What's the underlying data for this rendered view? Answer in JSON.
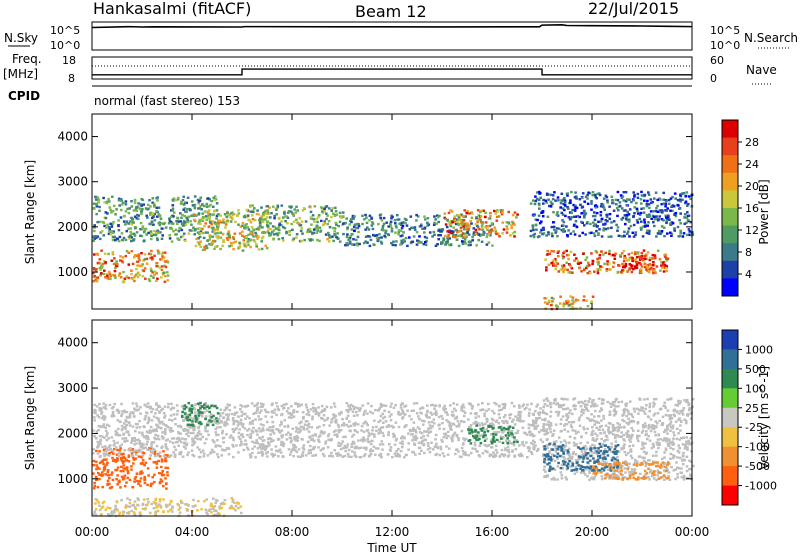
{
  "header": {
    "station": "Hankasalmi (fitACF)",
    "beam": "Beam 12",
    "date": "22/Jul/2015"
  },
  "panels": {
    "nsky_label": "N.Sky",
    "nsky_ticks": [
      "10^5",
      "10^0"
    ],
    "nsearch_label": "N.Search",
    "nsearch_ticks": [
      "10^5",
      "10^0"
    ],
    "freq_label": "Freq.",
    "freq_unit": "[MHz]",
    "freq_ticks": [
      "18",
      "8"
    ],
    "nave_label": "Nave",
    "nave_ticks": [
      "60",
      "0"
    ],
    "cpid_label": "CPID",
    "cpid_text": "normal (fast stereo) 153"
  },
  "colorbars": {
    "power": {
      "label": "Power [dB]",
      "ticks": [
        "28",
        "24",
        "20",
        "16",
        "12",
        "8",
        "4"
      ],
      "colors": [
        "#0000ff",
        "#1c3fa8",
        "#3a7a8a",
        "#4f9c62",
        "#7ab84a",
        "#c9c83a",
        "#f0a020",
        "#f07018",
        "#e8401c",
        "#dd0000"
      ]
    },
    "velocity": {
      "label": "Velocity [m s^-1]",
      "ticks": [
        "1000",
        "500",
        "100",
        "25",
        "-25",
        "-100",
        "-500",
        "-1000"
      ],
      "colors": [
        "#1b3fb0",
        "#2f6f98",
        "#2e8a50",
        "#66cc33",
        "#c8c8c0",
        "#f0c040",
        "#f09030",
        "#ff6010",
        "#ff0000"
      ]
    }
  },
  "colors": {
    "ground_scatter": "#bebebe"
  },
  "chart_data": [
    {
      "type": "line",
      "name": "sky-noise",
      "x_unit": "hours UT",
      "x": [
        0,
        1.5,
        2,
        2.5,
        6,
        6.1,
        10,
        14,
        17.9,
        18,
        18.8,
        19,
        20,
        22,
        23,
        24
      ],
      "y": [
        20000,
        30000,
        25000,
        28000,
        25000,
        30000,
        28000,
        26000,
        28000,
        60000,
        70000,
        50000,
        45000,
        40000,
        35000,
        30000
      ]
    },
    {
      "type": "line",
      "name": "frequency",
      "x_unit": "hours UT",
      "x": [
        0,
        6,
        6,
        18,
        18,
        24
      ],
      "y": [
        9.9,
        9.9,
        12.5,
        12.5,
        9.9,
        9.9
      ],
      "ylim": [
        8,
        18
      ]
    },
    {
      "type": "heatmap",
      "panel": "power",
      "xlabel": "Time UT",
      "ylabel": "Slant Range [km]",
      "x_ticks": [
        "00:00",
        "04:00",
        "08:00",
        "12:00",
        "16:00",
        "20:00",
        "00:00"
      ],
      "y_ticks": [
        "4000",
        "3000",
        "2000",
        "1000"
      ],
      "xlim": [
        0,
        24
      ],
      "ylim": [
        180,
        4500
      ],
      "bands": [
        {
          "t0": 0,
          "t1": 3,
          "r0": 800,
          "r1": 1500,
          "value": 22
        },
        {
          "t0": 0,
          "t1": 5,
          "r0": 1700,
          "r1": 2700,
          "value": 12
        },
        {
          "t0": 4,
          "t1": 7,
          "r0": 1500,
          "r1": 2400,
          "value": 18
        },
        {
          "t0": 6,
          "t1": 10,
          "r0": 1700,
          "r1": 2500,
          "value": 14
        },
        {
          "t0": 10,
          "t1": 16,
          "r0": 1600,
          "r1": 2300,
          "value": 10
        },
        {
          "t0": 14,
          "t1": 17,
          "r0": 1800,
          "r1": 2400,
          "value": 22
        },
        {
          "t0": 17.5,
          "t1": 24,
          "r0": 1800,
          "r1": 2800,
          "value": 8
        },
        {
          "t0": 18,
          "t1": 23,
          "r0": 1000,
          "r1": 1500,
          "value": 24
        },
        {
          "t0": 21,
          "t1": 23,
          "r0": 1000,
          "r1": 1400,
          "value": 28
        },
        {
          "t0": 18,
          "t1": 20,
          "r0": 200,
          "r1": 500,
          "value": 20
        }
      ]
    },
    {
      "type": "heatmap",
      "panel": "velocity",
      "xlabel": "Time UT",
      "ylabel": "Slant Range [km]",
      "x_ticks": [
        "00:00",
        "04:00",
        "08:00",
        "12:00",
        "16:00",
        "20:00",
        "00:00"
      ],
      "y_ticks": [
        "4000",
        "3000",
        "2000",
        "1000"
      ],
      "xlim": [
        0,
        24
      ],
      "ylim": [
        180,
        4500
      ],
      "bands": [
        {
          "t0": 0,
          "t1": 3,
          "r0": 800,
          "r1": 1700,
          "value": -500
        },
        {
          "t0": 0,
          "t1": 18,
          "r0": 1500,
          "r1": 2700,
          "value": 0
        },
        {
          "t0": 3.5,
          "t1": 5,
          "r0": 2200,
          "r1": 2700,
          "value": 100
        },
        {
          "t0": 18,
          "t1": 24,
          "r0": 1000,
          "r1": 2800,
          "value": 0
        },
        {
          "t0": 18,
          "t1": 21,
          "r0": 1200,
          "r1": 1800,
          "value": 500
        },
        {
          "t0": 20,
          "t1": 23,
          "r0": 1000,
          "r1": 1400,
          "value": -100
        },
        {
          "t0": 15,
          "t1": 17,
          "r0": 1800,
          "r1": 2200,
          "value": 100
        },
        {
          "t0": 0,
          "t1": 6,
          "r0": 200,
          "r1": 600,
          "value": -25
        }
      ]
    }
  ]
}
